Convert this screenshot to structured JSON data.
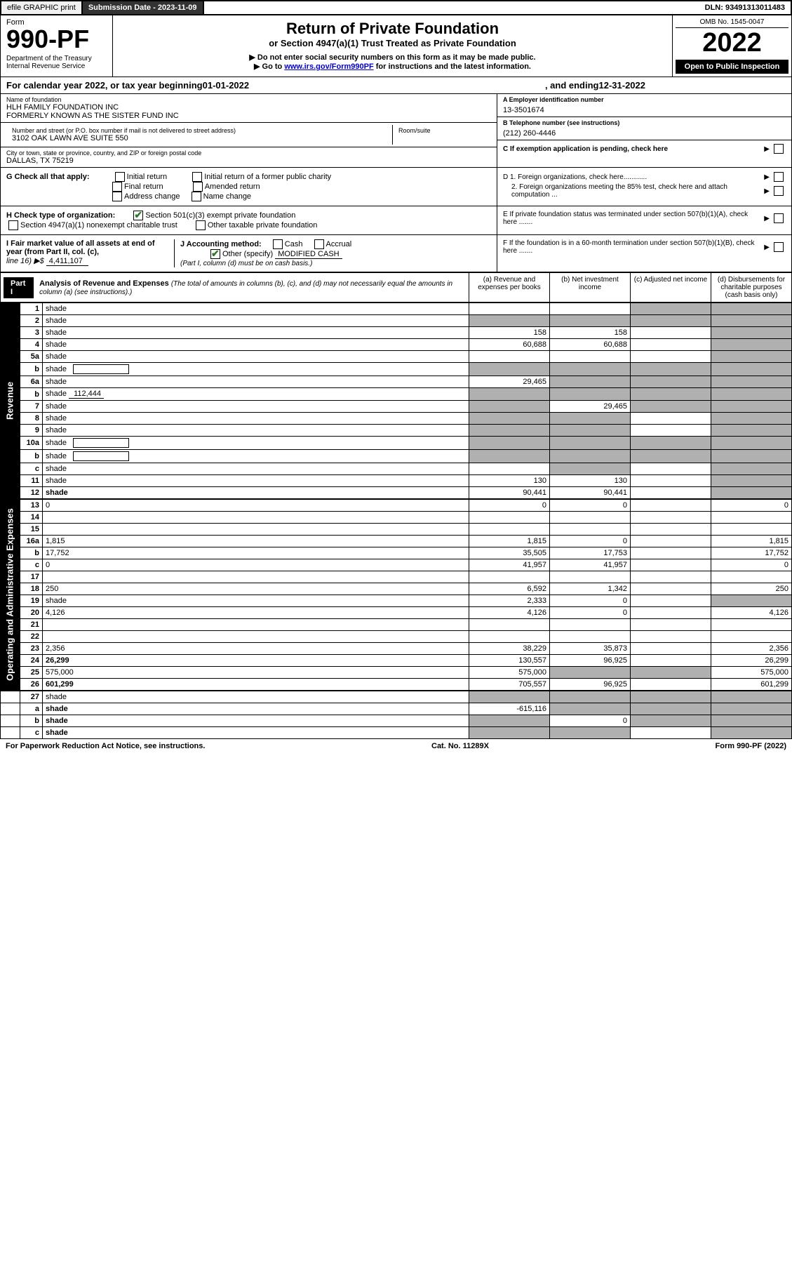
{
  "topbar": {
    "efile": "efile GRAPHIC print",
    "subdate_label": "Submission Date - ",
    "subdate": "2023-11-09",
    "dln_label": "DLN: ",
    "dln": "93491313011483"
  },
  "header": {
    "form_word": "Form",
    "form_num": "990-PF",
    "dept": "Department of the Treasury",
    "irs": "Internal Revenue Service",
    "title": "Return of Private Foundation",
    "subtitle": "or Section 4947(a)(1) Trust Treated as Private Foundation",
    "warn": "▶ Do not enter social security numbers on this form as it may be made public.",
    "goto_pre": "▶ Go to ",
    "goto_link": "www.irs.gov/Form990PF",
    "goto_post": " for instructions and the latest information.",
    "omb": "OMB No. 1545-0047",
    "year": "2022",
    "open": "Open to Public Inspection"
  },
  "calyear": {
    "text1": "For calendar year 2022, or tax year beginning ",
    "begin": "01-01-2022",
    "text2": ", and ending ",
    "end": "12-31-2022"
  },
  "info": {
    "name_label": "Name of foundation",
    "name1": "HLH FAMILY FOUNDATION INC",
    "name2": "FORMERLY KNOWN AS THE SISTER FUND INC",
    "addr_label": "Number and street (or P.O. box number if mail is not delivered to street address)",
    "addr": "3102 OAK LAWN AVE SUITE 550",
    "room_label": "Room/suite",
    "city_label": "City or town, state or province, country, and ZIP or foreign postal code",
    "city": "DALLAS, TX  75219",
    "a_label": "A Employer identification number",
    "a_val": "13-3501674",
    "b_label": "B Telephone number (see instructions)",
    "b_val": "(212) 260-4446",
    "c_label": "C If exemption application is pending, check here",
    "d1": "D 1. Foreign organizations, check here............",
    "d2": "2. Foreign organizations meeting the 85% test, check here and attach computation ...",
    "e": "E  If private foundation status was terminated under section 507(b)(1)(A), check here .......",
    "f": "F  If the foundation is in a 60-month termination under section 507(b)(1)(B), check here .......",
    "g_label": "G Check all that apply:",
    "g_opts": [
      "Initial return",
      "Final return",
      "Address change",
      "Initial return of a former public charity",
      "Amended return",
      "Name change"
    ],
    "h_label": "H Check type of organization:",
    "h1": "Section 501(c)(3) exempt private foundation",
    "h2": "Section 4947(a)(1) nonexempt charitable trust",
    "h3": "Other taxable private foundation",
    "i_label": "I Fair market value of all assets at end of year (from Part II, col. (c),",
    "i_line": "line 16) ▶$ ",
    "i_val": "4,411,107",
    "j_label": "J Accounting method:",
    "j_cash": "Cash",
    "j_accrual": "Accrual",
    "j_other": "Other (specify)",
    "j_other_val": "MODIFIED CASH",
    "j_note": "(Part I, column (d) must be on cash basis.)"
  },
  "part1": {
    "label": "Part I",
    "title": "Analysis of Revenue and Expenses",
    "note": " (The total of amounts in columns (b), (c), and (d) may not necessarily equal the amounts in column (a) (see instructions).)",
    "cols": {
      "a": "(a) Revenue and expenses per books",
      "b": "(b) Net investment income",
      "c": "(c) Adjusted net income",
      "d": "(d) Disbursements for charitable purposes (cash basis only)"
    }
  },
  "side_labels": {
    "rev": "Revenue",
    "exp": "Operating and Administrative Expenses"
  },
  "rows": [
    {
      "n": "1",
      "d": "shade",
      "a": "",
      "b": "",
      "c": "shade"
    },
    {
      "n": "2",
      "d": "shade",
      "a": "shade",
      "b": "shade",
      "c": "shade"
    },
    {
      "n": "3",
      "d": "shade",
      "a": "158",
      "b": "158",
      "c": ""
    },
    {
      "n": "4",
      "d": "shade",
      "a": "60,688",
      "b": "60,688",
      "c": ""
    },
    {
      "n": "5a",
      "d": "shade",
      "a": "",
      "b": "",
      "c": ""
    },
    {
      "n": "b",
      "d": "shade",
      "a": "shade",
      "b": "shade",
      "c": "shade",
      "inset": true
    },
    {
      "n": "6a",
      "d": "shade",
      "a": "29,465",
      "b": "shade",
      "c": "shade"
    },
    {
      "n": "b",
      "d": "shade",
      "a": "shade",
      "b": "shade",
      "c": "shade",
      "inset": true,
      "inset_val": "112,444"
    },
    {
      "n": "7",
      "d": "shade",
      "a": "shade",
      "b": "29,465",
      "c": "shade"
    },
    {
      "n": "8",
      "d": "shade",
      "a": "shade",
      "b": "shade",
      "c": ""
    },
    {
      "n": "9",
      "d": "shade",
      "a": "shade",
      "b": "shade",
      "c": ""
    },
    {
      "n": "10a",
      "d": "shade",
      "a": "shade",
      "b": "shade",
      "c": "shade",
      "inset": true
    },
    {
      "n": "b",
      "d": "shade",
      "a": "shade",
      "b": "shade",
      "c": "shade",
      "inset": true
    },
    {
      "n": "c",
      "d": "shade",
      "a": "",
      "b": "shade",
      "c": ""
    },
    {
      "n": "11",
      "d": "shade",
      "a": "130",
      "b": "130",
      "c": ""
    },
    {
      "n": "12",
      "d": "shade",
      "a": "90,441",
      "b": "90,441",
      "c": "",
      "bold": true
    }
  ],
  "exp_rows": [
    {
      "n": "13",
      "d": "0",
      "a": "0",
      "b": "0",
      "c": ""
    },
    {
      "n": "14",
      "d": "",
      "a": "",
      "b": "",
      "c": ""
    },
    {
      "n": "15",
      "d": "",
      "a": "",
      "b": "",
      "c": ""
    },
    {
      "n": "16a",
      "d": "1,815",
      "a": "1,815",
      "b": "0",
      "c": ""
    },
    {
      "n": "b",
      "d": "17,752",
      "a": "35,505",
      "b": "17,753",
      "c": ""
    },
    {
      "n": "c",
      "d": "0",
      "a": "41,957",
      "b": "41,957",
      "c": ""
    },
    {
      "n": "17",
      "d": "",
      "a": "",
      "b": "",
      "c": ""
    },
    {
      "n": "18",
      "d": "250",
      "a": "6,592",
      "b": "1,342",
      "c": ""
    },
    {
      "n": "19",
      "d": "shade",
      "a": "2,333",
      "b": "0",
      "c": ""
    },
    {
      "n": "20",
      "d": "4,126",
      "a": "4,126",
      "b": "0",
      "c": ""
    },
    {
      "n": "21",
      "d": "",
      "a": "",
      "b": "",
      "c": ""
    },
    {
      "n": "22",
      "d": "",
      "a": "",
      "b": "",
      "c": ""
    },
    {
      "n": "23",
      "d": "2,356",
      "a": "38,229",
      "b": "35,873",
      "c": ""
    },
    {
      "n": "24",
      "d": "26,299",
      "a": "130,557",
      "b": "96,925",
      "c": "",
      "bold": true
    },
    {
      "n": "25",
      "d": "575,000",
      "a": "575,000",
      "b": "shade",
      "c": "shade"
    },
    {
      "n": "26",
      "d": "601,299",
      "a": "705,557",
      "b": "96,925",
      "c": "",
      "bold": true
    }
  ],
  "bottom_rows": [
    {
      "n": "27",
      "d": "shade",
      "a": "shade",
      "b": "shade",
      "c": "shade"
    },
    {
      "n": "a",
      "d": "shade",
      "a": "-615,116",
      "b": "shade",
      "c": "shade",
      "bold": true
    },
    {
      "n": "b",
      "d": "shade",
      "a": "shade",
      "b": "0",
      "c": "shade",
      "bold": true
    },
    {
      "n": "c",
      "d": "shade",
      "a": "shade",
      "b": "shade",
      "c": "",
      "bold": true
    }
  ],
  "footer": {
    "left": "For Paperwork Reduction Act Notice, see instructions.",
    "mid": "Cat. No. 11289X",
    "right": "Form 990-PF (2022)"
  }
}
